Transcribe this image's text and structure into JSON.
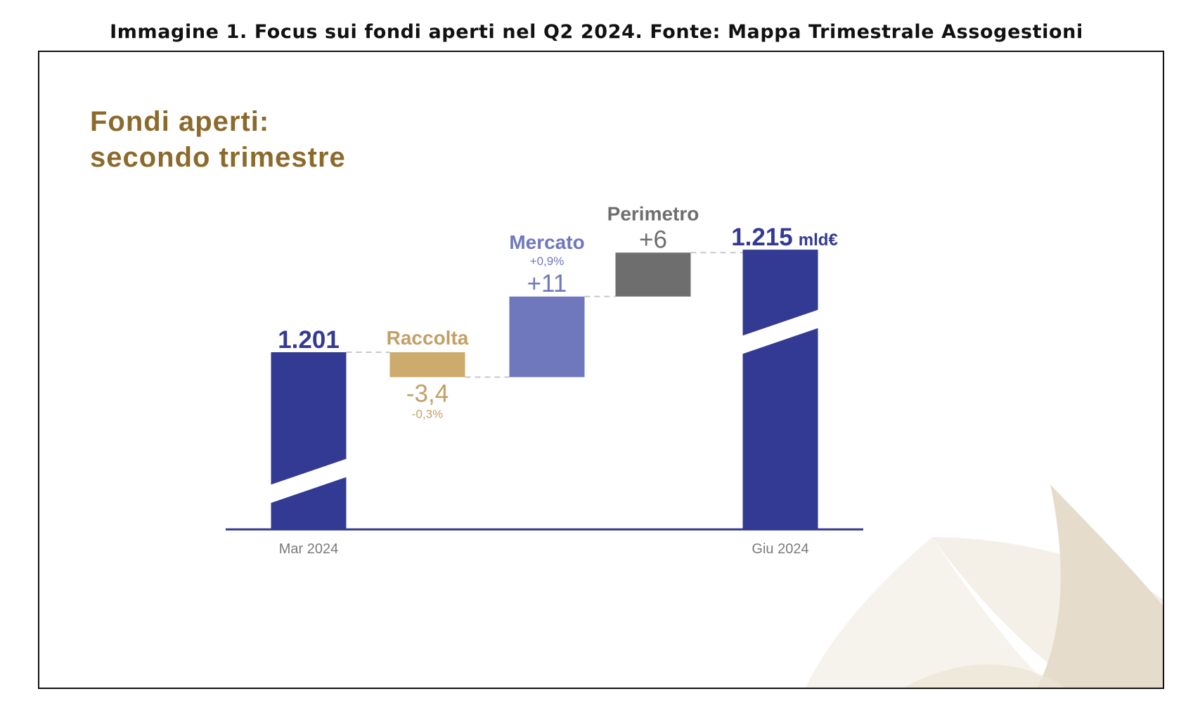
{
  "caption": "Immagine 1. Focus sui fondi aperti nel Q2 2024. Fonte: Mappa Trimestrale Assogestioni",
  "chart_data": {
    "type": "bar",
    "subtype": "waterfall",
    "title_line1": "Fondi aperti:",
    "title_line2": "secondo trimestre",
    "unit": "mld€",
    "categories": [
      "Mar 2024",
      "Raccolta",
      "Mercato",
      "Perimetro",
      "Giu 2024"
    ],
    "steps": [
      {
        "key": "mar",
        "kind": "total",
        "value": 1201,
        "value_label": "1.201",
        "axis_label": "Mar 2024",
        "color": "#333a93"
      },
      {
        "key": "raccolta",
        "kind": "delta",
        "value": -3.4,
        "name": "Raccolta",
        "value_label": "-3,4",
        "pct_label": "-0,3%",
        "color": "#cdab6c"
      },
      {
        "key": "mercato",
        "kind": "delta",
        "value": 11,
        "name": "Mercato",
        "value_label": "+11",
        "pct_label": "+0,9%",
        "color": "#6f78bd"
      },
      {
        "key": "perimetro",
        "kind": "delta",
        "value": 6,
        "name": "Perimetro",
        "value_label": "+6",
        "color": "#6e6e6e"
      },
      {
        "key": "giu",
        "kind": "total",
        "value": 1215,
        "value_label": "1.215",
        "axis_label": "Giu 2024",
        "color": "#333a93"
      }
    ],
    "axis_break": true,
    "colors": {
      "title": "#8c6a2c",
      "total": "#333a93",
      "raccolta_text": "#c2a066",
      "mercato_text": "#6f78bd",
      "perimetro_text": "#6e6e6e",
      "axis": "#333a93",
      "tick_text": "#7a7a7a"
    }
  }
}
